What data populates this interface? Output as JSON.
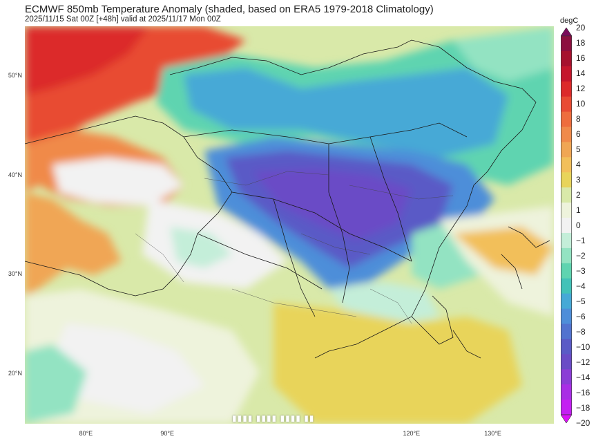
{
  "title": "ECMWF 850mb Temperature Anomaly (shaded, based on ERA5 1979-2018 Climatology)",
  "subtitle": "2025/11/15 Sat 00Z [+48h] valid at 2025/11/17 Mon 00Z",
  "map": {
    "latitude_labels": [
      {
        "lat": 50,
        "label": "50°N"
      },
      {
        "lat": 40,
        "label": "40°N"
      },
      {
        "lat": 30,
        "label": "30°N"
      },
      {
        "lat": 20,
        "label": "20°N"
      }
    ],
    "longitude_labels": [
      {
        "lon": 80,
        "label": "80°E"
      },
      {
        "lon": 90,
        "label": "90°E"
      },
      {
        "lon": 120,
        "label": "120°E"
      },
      {
        "lon": 130,
        "label": "130°E"
      }
    ],
    "lon_range": [
      72.5,
      137.5
    ],
    "lat_range": [
      15,
      55
    ]
  },
  "colorbar": {
    "unit": "degC",
    "levels": [
      {
        "label": "20",
        "color": "#7a0a5a"
      },
      {
        "label": "18",
        "color": "#8c0f3f"
      },
      {
        "label": "16",
        "color": "#a6112e"
      },
      {
        "label": "14",
        "color": "#c5162c"
      },
      {
        "label": "12",
        "color": "#dc2a2a"
      },
      {
        "label": "10",
        "color": "#e84b33"
      },
      {
        "label": "8",
        "color": "#ee6d3d"
      },
      {
        "label": "6",
        "color": "#f08a4a"
      },
      {
        "label": "5",
        "color": "#f0a654"
      },
      {
        "label": "4",
        "color": "#f2bf5a"
      },
      {
        "label": "3",
        "color": "#e8d45a"
      },
      {
        "label": "2",
        "color": "#d9e9a9"
      },
      {
        "label": "1",
        "color": "#eef3dc"
      },
      {
        "label": "0",
        "color": "#f2f2f2"
      },
      {
        "label": "−1",
        "color": "#c4eed9"
      },
      {
        "label": "−2",
        "color": "#93e3c2"
      },
      {
        "label": "−3",
        "color": "#5fd4b0"
      },
      {
        "label": "−4",
        "color": "#42c2b8"
      },
      {
        "label": "−5",
        "color": "#46a9d6"
      },
      {
        "label": "−6",
        "color": "#4e8ed9"
      },
      {
        "label": "−8",
        "color": "#5273cf"
      },
      {
        "label": "−10",
        "color": "#5a5ac6"
      },
      {
        "label": "−12",
        "color": "#6a4bc6"
      },
      {
        "label": "−14",
        "color": "#8b3dd6"
      },
      {
        "label": "−16",
        "color": "#a92ee5"
      },
      {
        "label": "−18",
        "color": "#c41ff2"
      },
      {
        "label": "−20",
        "color": "#dd10f8"
      }
    ]
  },
  "watermark": "▮▮▮▮ ▮▮▮▮ ▮▮▮▮ ▮▮"
}
